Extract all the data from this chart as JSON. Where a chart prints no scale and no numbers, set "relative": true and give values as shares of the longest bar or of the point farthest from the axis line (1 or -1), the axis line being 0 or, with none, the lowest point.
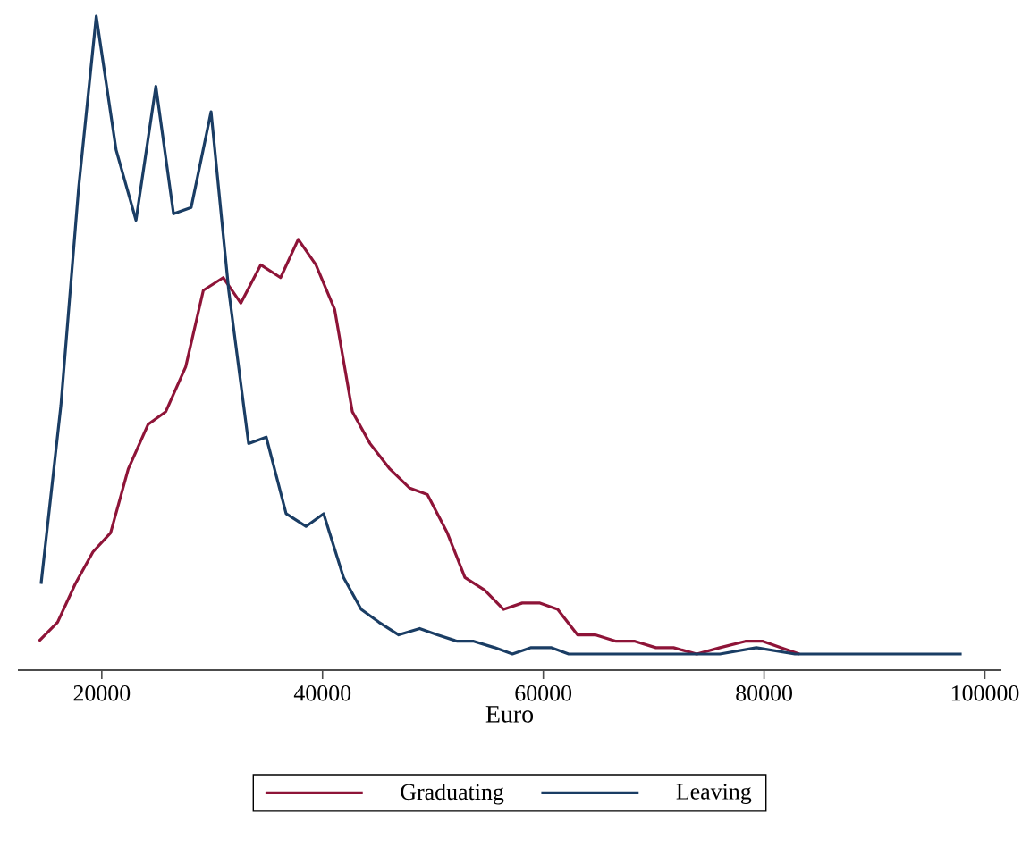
{
  "chart_data": {
    "type": "line",
    "xlabel": "Euro",
    "relative": true,
    "xlim": [
      12400,
      101500
    ],
    "xticks": [
      20000,
      40000,
      60000,
      80000,
      100000
    ],
    "legend": "bottom",
    "tick_labels": "x",
    "marker": "none",
    "line_style": "solid",
    "series": [
      {
        "name": "Graduating",
        "color": "#8e1438",
        "x": [
          14300,
          16000,
          17600,
          19200,
          20800,
          22400,
          24200,
          25800,
          27600,
          29200,
          31000,
          32600,
          34400,
          36200,
          37800,
          39400,
          41100,
          42700,
          44300,
          46100,
          47900,
          49500,
          51300,
          52900,
          54700,
          56400,
          58100,
          59700,
          61300,
          63100,
          64700,
          66600,
          68300,
          70200,
          71800,
          73900,
          76000,
          78300,
          79900,
          81500,
          83200
        ],
        "values": [
          0.02,
          0.05,
          0.11,
          0.16,
          0.19,
          0.29,
          0.36,
          0.38,
          0.45,
          0.57,
          0.59,
          0.55,
          0.61,
          0.59,
          0.65,
          0.61,
          0.54,
          0.38,
          0.33,
          0.29,
          0.26,
          0.25,
          0.19,
          0.12,
          0.1,
          0.07,
          0.08,
          0.08,
          0.07,
          0.03,
          0.03,
          0.02,
          0.02,
          0.01,
          0.01,
          0.0,
          0.01,
          0.02,
          0.02,
          0.01,
          0.0
        ]
      },
      {
        "name": "Leaving",
        "color": "#1a3d64",
        "x": [
          14500,
          16300,
          17900,
          19500,
          21300,
          23100,
          24900,
          26500,
          28100,
          29900,
          31500,
          33300,
          34900,
          36700,
          38500,
          40100,
          41900,
          43500,
          45100,
          46900,
          48800,
          50400,
          52200,
          53700,
          55600,
          57200,
          58900,
          60700,
          62300,
          67500,
          72800,
          76000,
          79300,
          82800,
          85300,
          88500,
          91700,
          97900
        ],
        "values": [
          0.11,
          0.39,
          0.73,
          1,
          0.79,
          0.68,
          0.89,
          0.69,
          0.7,
          0.85,
          0.57,
          0.33,
          0.34,
          0.22,
          0.2,
          0.22,
          0.12,
          0.07,
          0.05,
          0.03,
          0.04,
          0.03,
          0.02,
          0.02,
          0.01,
          0.0,
          0.01,
          0.01,
          0.0,
          0.0,
          0.0,
          0.0,
          0.01,
          0.0,
          0.0,
          0.0,
          0.0,
          0.0
        ]
      }
    ]
  }
}
